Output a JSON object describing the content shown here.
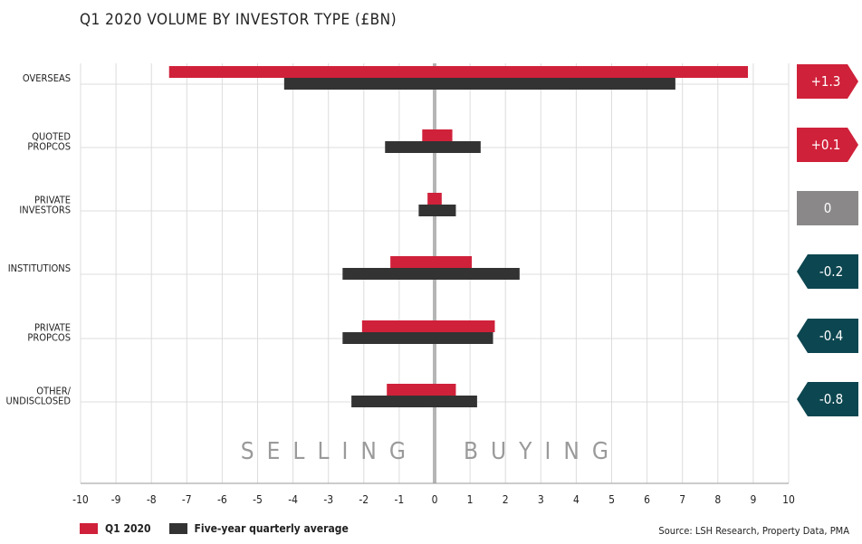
{
  "chart_data": {
    "type": "bar",
    "orientation": "horizontal",
    "title": "Q1 2020 VOLUME BY INVESTOR TYPE (£BN)",
    "categories": [
      "OVERSEAS",
      "QUOTED PROPCOS",
      "PRIVATE INVESTORS",
      "INSTITUTIONS",
      "PRIVATE PROPCOS",
      "OTHER/ UNDISCLOSED"
    ],
    "category_lines": [
      [
        "OVERSEAS"
      ],
      [
        "QUOTED",
        "PROPCOS"
      ],
      [
        "PRIVATE",
        "INVESTORS"
      ],
      [
        "INSTITUTIONS"
      ],
      [
        "PRIVATE",
        "PROPCOS"
      ],
      [
        "OTHER/",
        "UNDISCLOSED"
      ]
    ],
    "series": [
      {
        "name": "Q1 2020",
        "color": "#d0213a",
        "selling": [
          -7.5,
          -0.35,
          -0.2,
          -1.25,
          -2.05,
          -1.35
        ],
        "buying": [
          8.85,
          0.5,
          0.2,
          1.05,
          1.7,
          0.6
        ]
      },
      {
        "name": "Five-year quarterly average",
        "color": "#333333",
        "selling": [
          -4.25,
          -1.4,
          -0.45,
          -2.6,
          -2.6,
          -2.35
        ],
        "buying": [
          6.8,
          1.3,
          0.6,
          2.4,
          1.65,
          1.2
        ]
      }
    ],
    "net_badges": [
      {
        "value": "+1.3",
        "color": "#d0213a",
        "direction": "right"
      },
      {
        "value": "+0.1",
        "color": "#d0213a",
        "direction": "right"
      },
      {
        "value": "0",
        "color": "#8a8888",
        "direction": "none"
      },
      {
        "value": "-0.2",
        "color": "#0c4650",
        "direction": "left"
      },
      {
        "value": "-0.4",
        "color": "#0c4650",
        "direction": "left"
      },
      {
        "value": "-0.8",
        "color": "#0c4650",
        "direction": "left"
      }
    ],
    "zone_labels": {
      "selling": "SELLING",
      "buying": "BUYING"
    },
    "xlim": [
      -10,
      10
    ],
    "x_ticks": [
      -10,
      -9,
      -8,
      -7,
      -6,
      -5,
      -4,
      -3,
      -2,
      -1,
      0,
      1,
      2,
      3,
      4,
      5,
      6,
      7,
      8,
      9,
      10
    ],
    "grid": true,
    "legend_position": "bottom-left"
  },
  "legend": [
    {
      "label": "Q1 2020",
      "color": "#d0213a"
    },
    {
      "label": "Five-year quarterly average",
      "color": "#333333"
    }
  ],
  "source": "Source: LSH Research, Property Data, PMA"
}
